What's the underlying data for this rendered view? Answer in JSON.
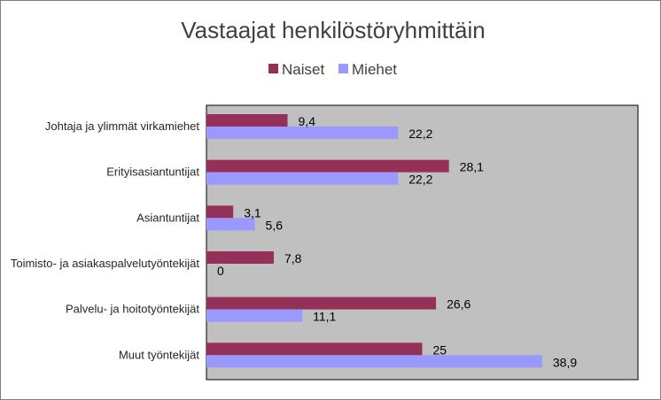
{
  "chart_data": {
    "type": "bar",
    "orientation": "horizontal",
    "title": "Vastaajat henkilöstöryhmittäin",
    "categories": [
      "Johtaja ja ylimmät virkamiehet",
      "Erityisasiantuntijat",
      "Asiantuntijat",
      "Toimisto- ja asiakaspalvelutyöntekijät",
      "Palvelu- ja hoitotyöntekijät",
      "Muut työntekijät"
    ],
    "series": [
      {
        "name": "Naiset",
        "color": "#953159",
        "values": [
          9.4,
          28.1,
          3.1,
          7.8,
          26.6,
          25
        ],
        "labels": [
          "9,4",
          "28,1",
          "3,1",
          "7,8",
          "26,6",
          "25"
        ]
      },
      {
        "name": "Miehet",
        "color": "#9999ff",
        "values": [
          22.2,
          22.2,
          5.6,
          0,
          11.1,
          38.9
        ],
        "labels": [
          "22,2",
          "22,2",
          "5,6",
          "0",
          "11,1",
          "38,9"
        ]
      }
    ],
    "xlim": [
      0,
      50
    ],
    "legend_position": "top",
    "grid": false,
    "plot_background": "#c0c0c0"
  }
}
